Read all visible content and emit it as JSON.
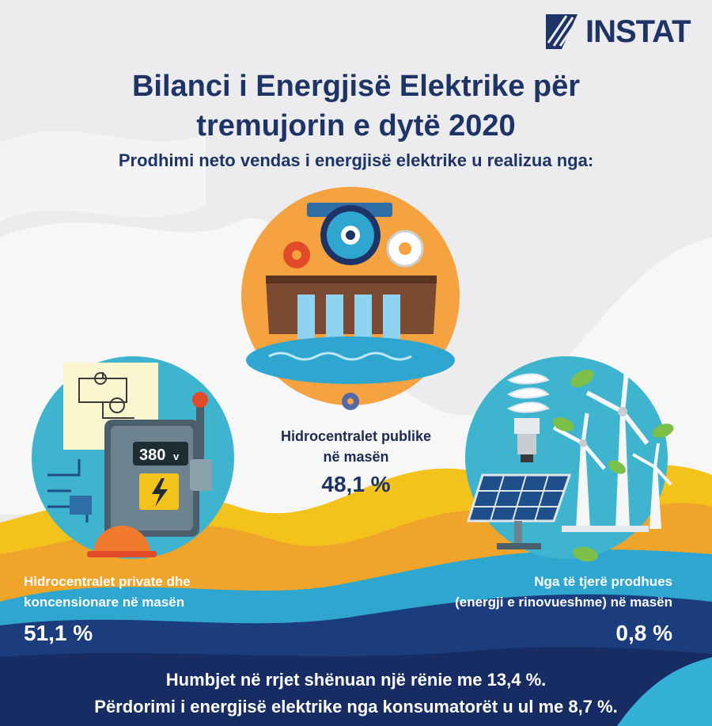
{
  "brand": {
    "logo_text": "INSTAT"
  },
  "header": {
    "title_line1": "Bilanci i Energjisë Elektrike për",
    "title_line2": "tremujorin e dytë 2020",
    "subtitle": "Prodhimi neto vendas i energjisë elektrike u realizua nga:"
  },
  "meter": {
    "voltage": "380",
    "unit": "v"
  },
  "sources": {
    "public_hydro": {
      "label_line1": "Hidrocentralet publike",
      "label_line2": "në masën",
      "value": "48,1 %"
    },
    "private_hydro": {
      "label_line1": "Hidrocentralet private dhe",
      "label_line2": "koncensionare në masën",
      "value": "51,1 %"
    },
    "others": {
      "label_line1": "Nga të tjerë prodhues",
      "label_line2": "(energji e rinovueshme) në masën",
      "value": "0,8 %"
    }
  },
  "footer": {
    "line1": "Humbjet në rrjet shënuan një rënie me 13,4 %.",
    "line2": "Përdorimi i energjisë elektrike nga konsumatorët u ul me 8,7 %."
  },
  "colors": {
    "navy": "#1e3466",
    "orange": "#f4a340",
    "teal": "#3eb4cf",
    "yellow": "#f3c21b",
    "deep_blue": "#1a3a7a",
    "background": "#ececee"
  }
}
